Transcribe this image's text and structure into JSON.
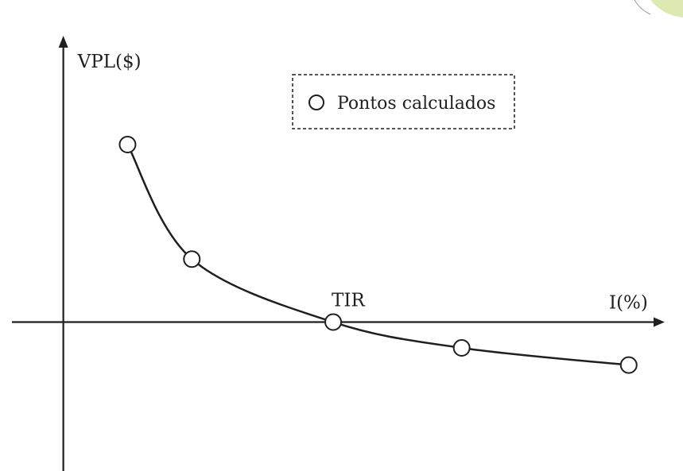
{
  "chart_data": {
    "type": "line",
    "title": "",
    "xlabel": "I(%)",
    "ylabel": "VPL($)",
    "legend": {
      "placement": "top-center",
      "entries": [
        "Pontos calculados"
      ]
    },
    "series": [
      {
        "name": "Pontos calculados",
        "marker": "open-circle",
        "points": [
          {
            "x": 2.5,
            "y": 3.1
          },
          {
            "x": 5.0,
            "y": 1.1
          },
          {
            "x": 10.5,
            "y": 0.0
          },
          {
            "x": 15.5,
            "y": -0.45
          },
          {
            "x": 22.0,
            "y": -0.75
          }
        ]
      }
    ],
    "xlim": [
      -2,
      23.4
    ],
    "ylim": [
      -2.6,
      5.0
    ],
    "grid": false,
    "annotations": [
      {
        "text": "TIR",
        "x": 10.5,
        "y": 0.0
      }
    ]
  },
  "colors": {
    "ink": "#1f1f1f",
    "background": "#ffffff",
    "corner_accent": "#dce9b0"
  }
}
